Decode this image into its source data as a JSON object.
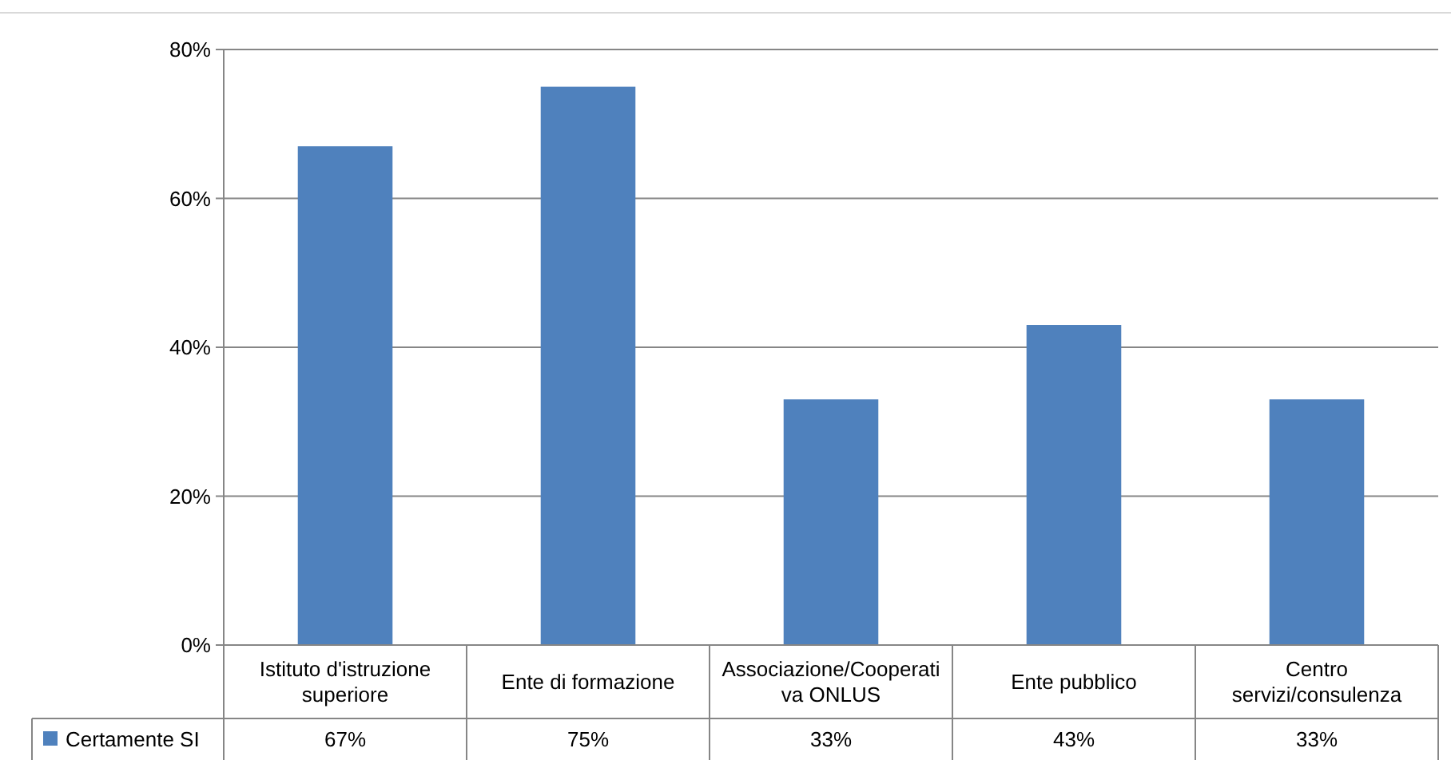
{
  "chart_data": {
    "type": "bar",
    "categories": [
      "Istituto d'istruzione superiore",
      "Ente di formazione",
      "Associazione/Cooperativa ONLUS",
      "Ente pubblico",
      "Centro servizi/consulenza"
    ],
    "series": [
      {
        "name": "Certamente SI",
        "color": "#4f81bd",
        "values": [
          67,
          75,
          33,
          43,
          33
        ],
        "value_labels": [
          "67%",
          "75%",
          "33%",
          "43%",
          "33%"
        ]
      }
    ],
    "ylim": [
      0,
      80
    ],
    "yticks": [
      {
        "value": 0,
        "label": "0%"
      },
      {
        "value": 20,
        "label": "20%"
      },
      {
        "value": 40,
        "label": "40%"
      },
      {
        "value": 60,
        "label": "60%"
      },
      {
        "value": 80,
        "label": "80%"
      }
    ],
    "grid": "y",
    "legend": "bottom"
  }
}
